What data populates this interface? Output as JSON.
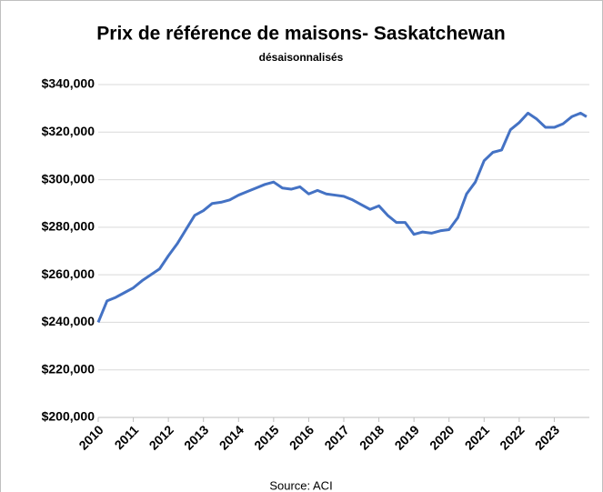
{
  "chart_data": {
    "type": "line",
    "title": "Prix de référence de maisons- Saskatchewan",
    "subtitle": "désaisonnalisés",
    "source": "Source: ACI",
    "x": [
      2010,
      2010.25,
      2010.5,
      2010.75,
      2011,
      2011.25,
      2011.5,
      2011.75,
      2012,
      2012.25,
      2012.5,
      2012.75,
      2013,
      2013.25,
      2013.5,
      2013.75,
      2014,
      2014.25,
      2014.5,
      2014.75,
      2015,
      2015.25,
      2015.5,
      2015.75,
      2016,
      2016.25,
      2016.5,
      2016.75,
      2017,
      2017.25,
      2017.5,
      2017.75,
      2018,
      2018.25,
      2018.5,
      2018.75,
      2019,
      2019.25,
      2019.5,
      2019.75,
      2020,
      2020.25,
      2020.5,
      2020.75,
      2021,
      2021.25,
      2021.5,
      2021.75,
      2022,
      2022.25,
      2022.5,
      2022.75,
      2023,
      2023.25,
      2023.5,
      2023.75,
      2023.92
    ],
    "series": [
      {
        "name": "Saskatchewan",
        "color": "#4472c4",
        "values": [
          240000,
          249000,
          250500,
          252500,
          254500,
          257500,
          260000,
          262500,
          268000,
          273000,
          279000,
          285000,
          287000,
          290000,
          290500,
          291500,
          293500,
          295000,
          296500,
          298000,
          299000,
          296500,
          296000,
          297000,
          294000,
          295500,
          294000,
          293500,
          293000,
          291500,
          289500,
          287500,
          289000,
          285000,
          282000,
          282000,
          277000,
          278000,
          277500,
          278500,
          279000,
          284000,
          294000,
          299000,
          308000,
          311500,
          312500,
          321000,
          324000,
          328000,
          325500,
          322000,
          322000,
          323500,
          326500,
          328000,
          326500
        ]
      }
    ],
    "xlim": [
      2010,
      2024
    ],
    "xticks": [
      2010,
      2011,
      2012,
      2013,
      2014,
      2015,
      2016,
      2017,
      2018,
      2019,
      2020,
      2021,
      2022,
      2023
    ],
    "ylim": [
      200000,
      340000
    ],
    "yticks": [
      {
        "value": 200000,
        "label": "$200,000"
      },
      {
        "value": 220000,
        "label": "$220,000"
      },
      {
        "value": 240000,
        "label": "$240,000"
      },
      {
        "value": 260000,
        "label": "$260,000"
      },
      {
        "value": 280000,
        "label": "$280,000"
      },
      {
        "value": 300000,
        "label": "$300,000"
      },
      {
        "value": 320000,
        "label": "$320,000"
      },
      {
        "value": 340000,
        "label": "$340,000"
      }
    ],
    "grid": true
  }
}
